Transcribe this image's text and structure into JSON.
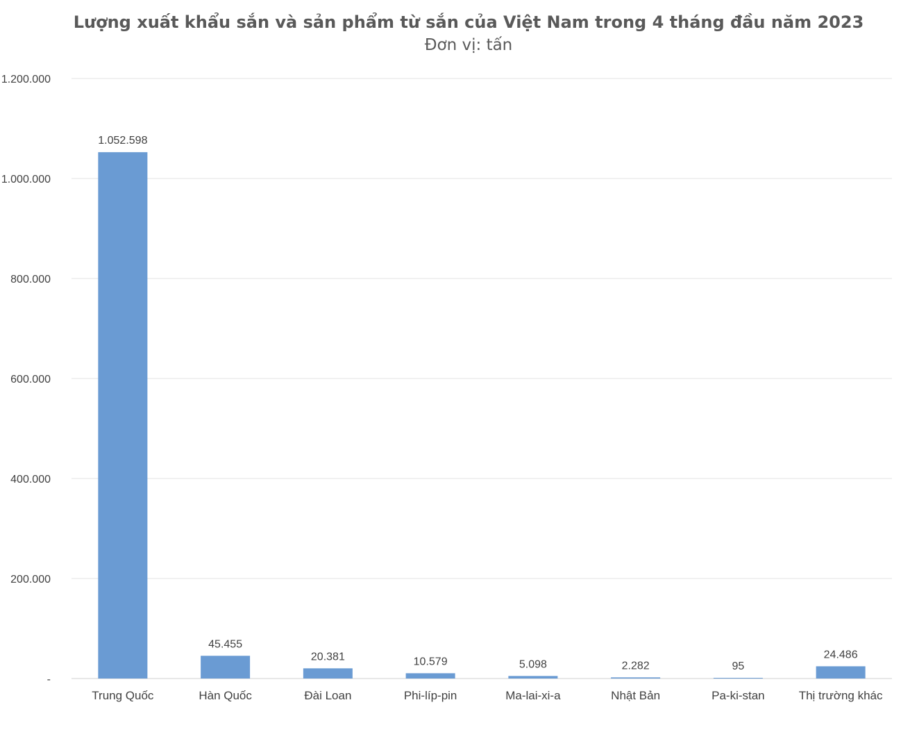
{
  "chart_data": {
    "type": "bar",
    "title": "Lượng xuất khẩu sắn và sản phẩm từ sắn của Việt Nam trong 4 tháng đầu năm 2023",
    "subtitle": "Đơn vị: tấn",
    "xlabel": "",
    "ylabel": "",
    "categories": [
      "Trung Quốc",
      "Hàn Quốc",
      "Đài Loan",
      "Phi-líp-pin",
      "Ma-lai-xi-a",
      "Nhật Bản",
      "Pa-ki-stan",
      "Thị trường khác"
    ],
    "values": [
      1052598,
      45455,
      20381,
      10579,
      5098,
      2282,
      95,
      24486
    ],
    "value_labels": [
      "1.052.598",
      "45.455",
      "20.381",
      "10.579",
      "5.098",
      "2.282",
      "95",
      "24.486"
    ],
    "ylim": [
      0,
      1200000
    ],
    "yticks": [
      0,
      200000,
      400000,
      600000,
      800000,
      1000000,
      1200000
    ],
    "ytick_labels": [
      "-",
      "200.000",
      "400.000",
      "600.000",
      "800.000",
      "1.000.000",
      "1.200.000"
    ],
    "grid": true,
    "legend": "none",
    "bar_color": "#6a9bd3",
    "grid_color": "#e3e3e3"
  }
}
